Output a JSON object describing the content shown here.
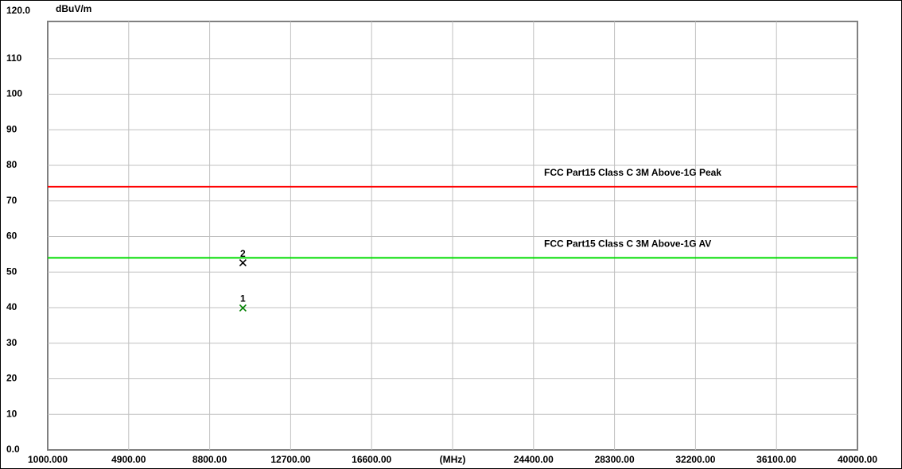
{
  "chart_data": {
    "type": "scatter",
    "y_label": "dBuV/m",
    "xlim": [
      1000,
      40000
    ],
    "xticks": [
      {
        "value": 1000,
        "label": "1000.000"
      },
      {
        "value": 4900,
        "label": "4900.00"
      },
      {
        "value": 8800,
        "label": "8800.00"
      },
      {
        "value": 12700,
        "label": "12700.00"
      },
      {
        "value": 16600,
        "label": "16600.00"
      },
      {
        "value": 20500,
        "label": "(MHz)"
      },
      {
        "value": 24400,
        "label": "24400.00"
      },
      {
        "value": 28300,
        "label": "28300.00"
      },
      {
        "value": 32200,
        "label": "32200.00"
      },
      {
        "value": 36100,
        "label": "36100.00"
      },
      {
        "value": 40000,
        "label": "40000.00"
      }
    ],
    "ylim": [
      0,
      120
    ],
    "yticks": [
      {
        "value": 0,
        "label": "0.0"
      },
      10,
      20,
      30,
      40,
      50,
      60,
      70,
      80,
      90,
      100,
      110,
      {
        "value": 120,
        "label": "120.0"
      }
    ],
    "grid": true,
    "limits": [
      {
        "name": "FCC Part15 Class C 3M Above-1G Peak",
        "color": "#ff0000",
        "value": 74
      },
      {
        "name": "FCC Part15 Class C 3M Above-1G AV",
        "color": "#00dd00",
        "value": 54
      }
    ],
    "points": [
      {
        "label": "1",
        "color": "#008000",
        "x": 10400,
        "y": 39.9
      },
      {
        "label": "2",
        "color": "#000000",
        "x": 10400,
        "y": 52.6
      }
    ]
  }
}
